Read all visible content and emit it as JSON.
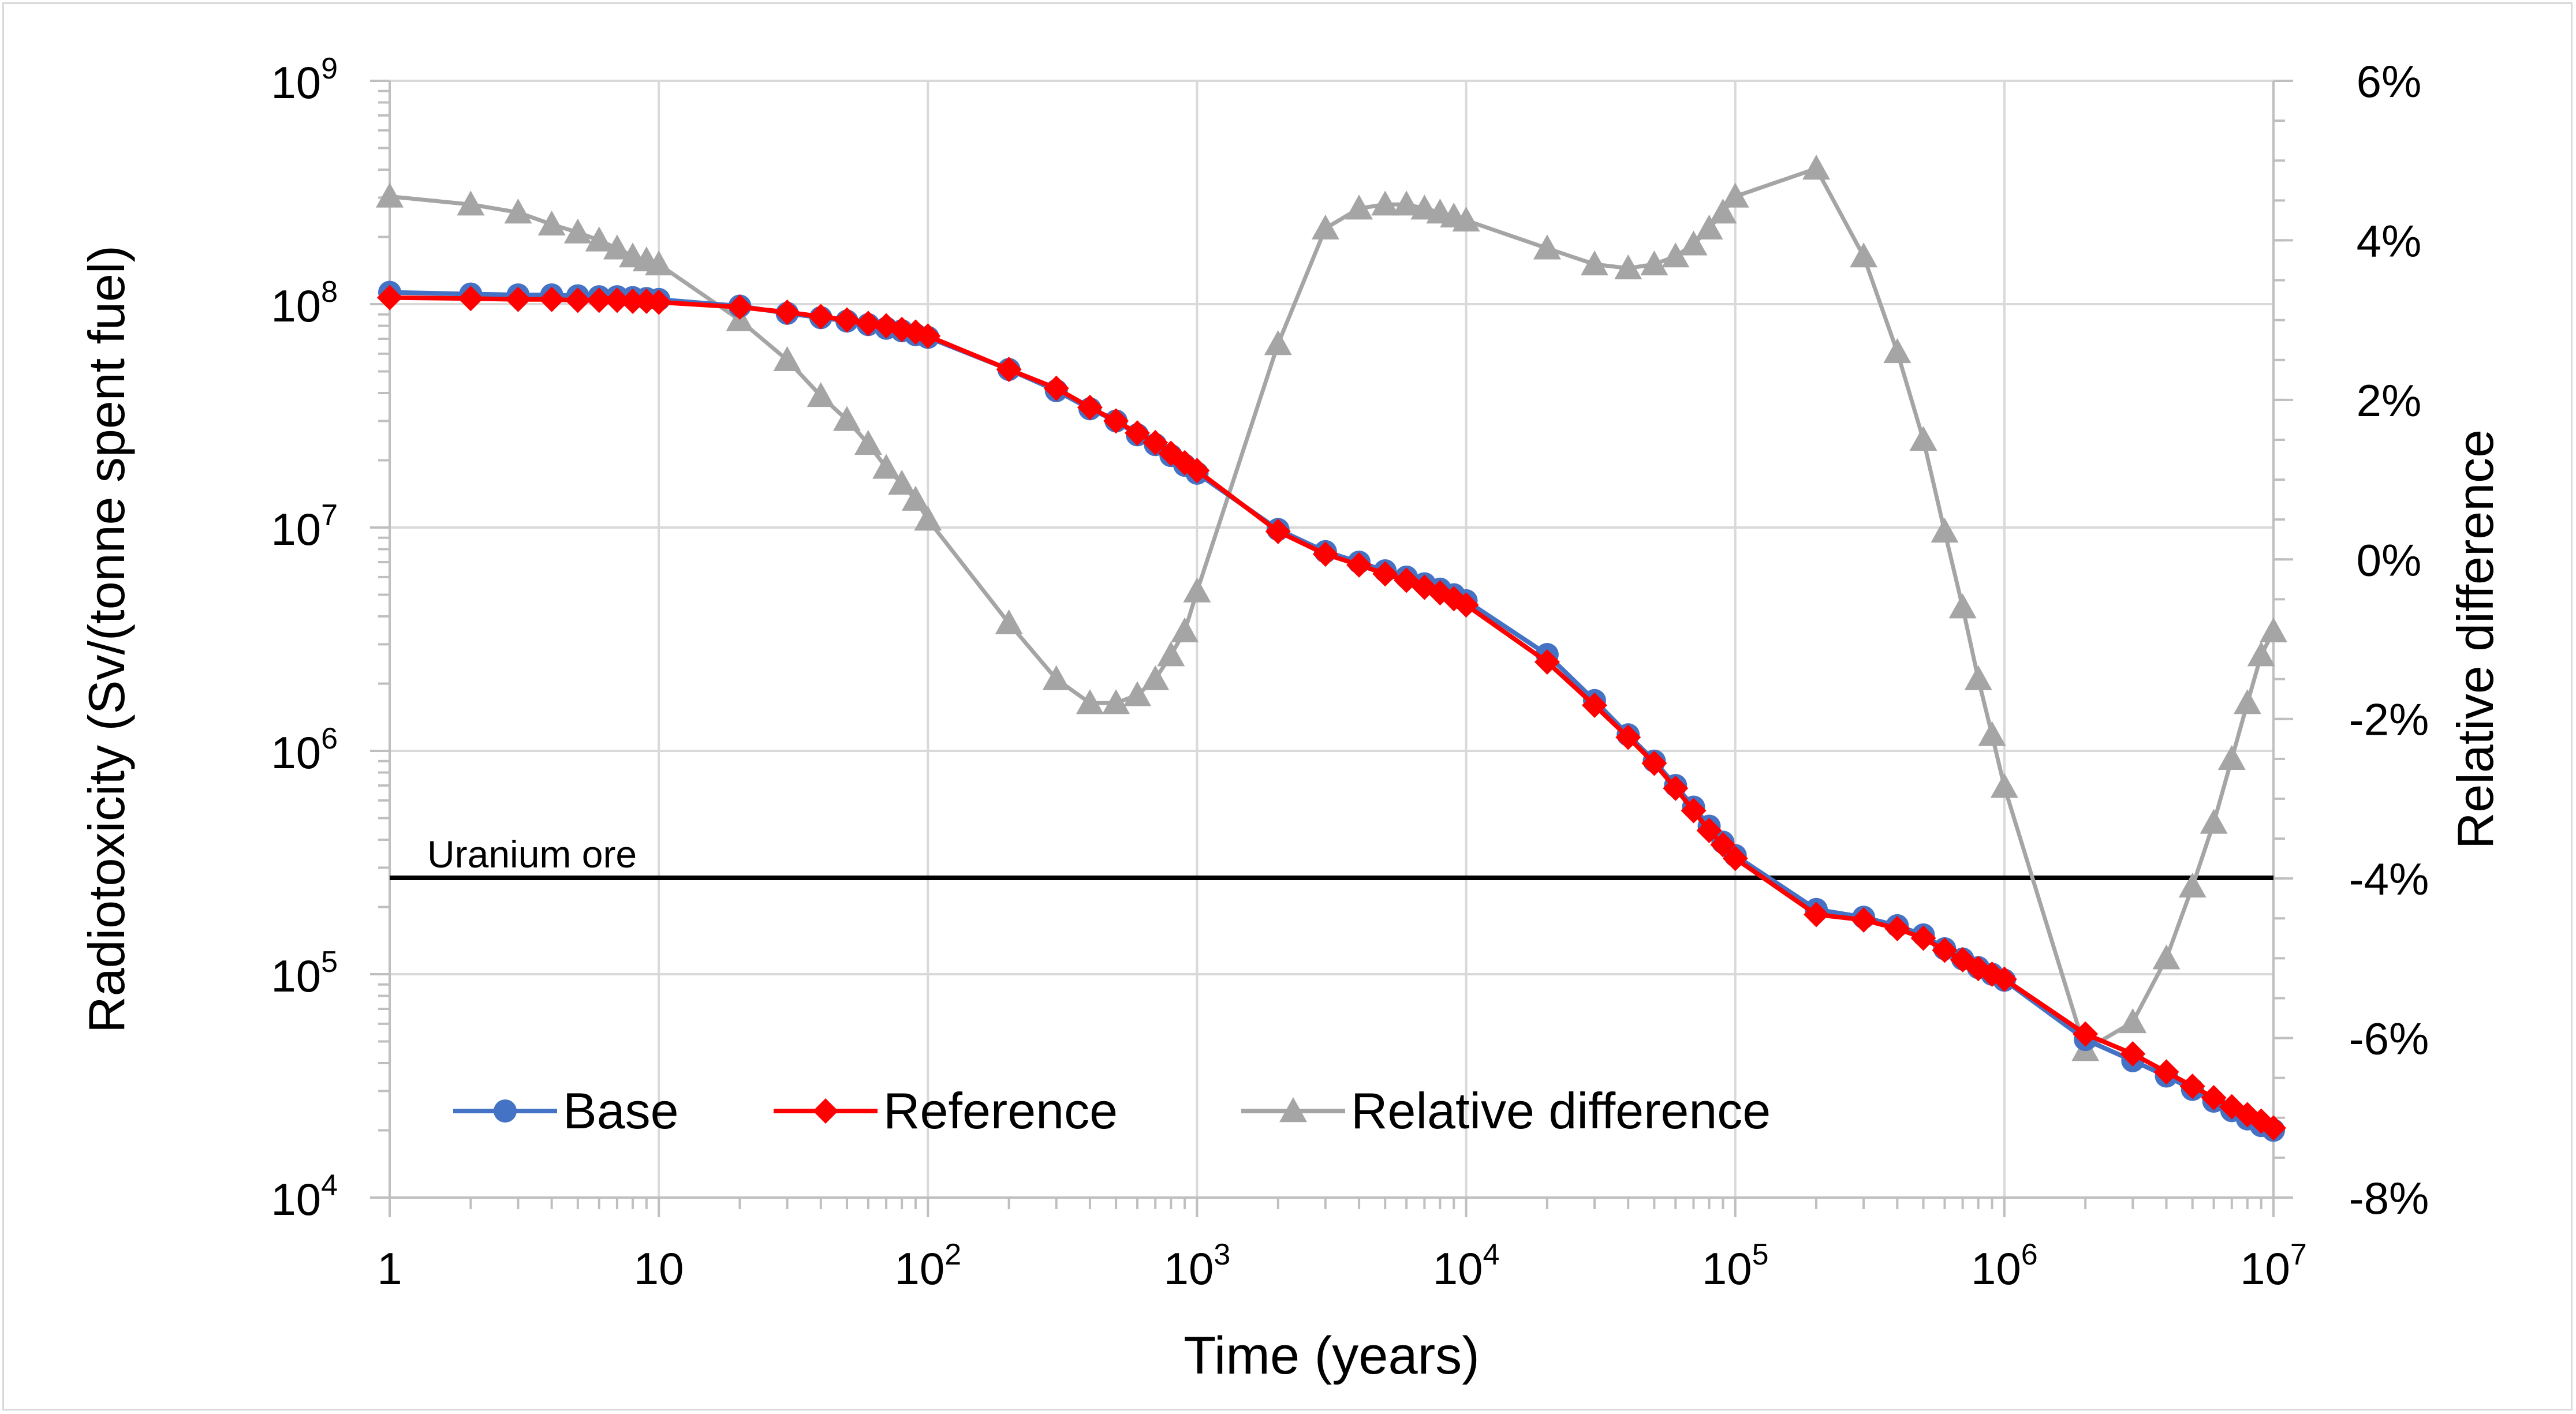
{
  "chart_data": {
    "type": "line",
    "title": "",
    "xlabel": "Time (years)",
    "ylabel": "Radiotoxicity (Sv/(tonne spent fuel)",
    "y2label": "Relative difference",
    "xscale": "log",
    "yscale": "log",
    "xlim": [
      1,
      10000000
    ],
    "ylim": [
      10000,
      1000000000
    ],
    "y2lim": [
      -8,
      6
    ],
    "grid": true,
    "legend_position": "bottom-left",
    "x_ticks": [
      {
        "value": 1,
        "base": "1",
        "exp": ""
      },
      {
        "value": 10,
        "base": "10",
        "exp": ""
      },
      {
        "value": 100,
        "base": "10",
        "exp": "2"
      },
      {
        "value": 1000,
        "base": "10",
        "exp": "3"
      },
      {
        "value": 10000,
        "base": "10",
        "exp": "4"
      },
      {
        "value": 100000,
        "base": "10",
        "exp": "5"
      },
      {
        "value": 1000000,
        "base": "10",
        "exp": "6"
      },
      {
        "value": 10000000,
        "base": "10",
        "exp": "7"
      }
    ],
    "y_ticks": [
      {
        "value": 10000,
        "base": "10",
        "exp": "4"
      },
      {
        "value": 100000,
        "base": "10",
        "exp": "5"
      },
      {
        "value": 1000000,
        "base": "10",
        "exp": "6"
      },
      {
        "value": 10000000,
        "base": "10",
        "exp": "7"
      },
      {
        "value": 100000000,
        "base": "10",
        "exp": "8"
      },
      {
        "value": 1000000000,
        "base": "10",
        "exp": "9"
      }
    ],
    "y2_ticks": [
      {
        "value": 6,
        "label": "6%"
      },
      {
        "value": 4,
        "label": "4%"
      },
      {
        "value": 2,
        "label": "2%"
      },
      {
        "value": 0,
        "label": "0%"
      },
      {
        "value": -2,
        "label": "-2%"
      },
      {
        "value": -4,
        "label": "-4%"
      },
      {
        "value": -6,
        "label": "-6%"
      },
      {
        "value": -8,
        "label": "-8%"
      }
    ],
    "annotation": {
      "text": "Uranium ore",
      "value": 270000
    },
    "series": [
      {
        "name": "Base",
        "axis": "left",
        "color": "#4472c4",
        "marker": "circle",
        "x": [
          1,
          2,
          3,
          4,
          5,
          6,
          7,
          8,
          9,
          10,
          20,
          30,
          40,
          50,
          60,
          70,
          80,
          90,
          100,
          200,
          300,
          400,
          500,
          600,
          700,
          800,
          900,
          1000,
          2000,
          3000,
          4000,
          5000,
          6000,
          7000,
          8000,
          9000,
          10000,
          20000,
          30000,
          40000,
          50000,
          60000,
          70000,
          80000,
          90000,
          100000,
          200000,
          300000,
          400000,
          500000,
          600000,
          700000,
          800000,
          900000,
          1000000,
          2000000,
          3000000,
          4000000,
          5000000,
          6000000,
          7000000,
          8000000,
          9000000,
          10000000
        ],
        "y": [
          113000000,
          111000000,
          110000000,
          110000000,
          109000000,
          108000000,
          108000000,
          107000000,
          106000000,
          105000000,
          98000000,
          91000000,
          87000000,
          84000000,
          81000000,
          78000000,
          76000000,
          73000000,
          71000000,
          51000000,
          41000000,
          34000000,
          30000000,
          26000000,
          23500000,
          21000000,
          19000000,
          17500000,
          9800000,
          7800000,
          7000000,
          6400000,
          6000000,
          5600000,
          5300000,
          5000000,
          4700000,
          2700000,
          1680000,
          1180000,
          900000,
          700000,
          560000,
          460000,
          390000,
          340000,
          195000,
          180000,
          165000,
          150000,
          130000,
          117000,
          107000,
          100000,
          94000,
          51000,
          41000,
          35000,
          30500,
          27000,
          24500,
          22500,
          21000,
          20000
        ]
      },
      {
        "name": "Reference",
        "axis": "left",
        "color": "#ff0000",
        "marker": "diamond",
        "x": [
          1,
          2,
          3,
          4,
          5,
          6,
          7,
          8,
          9,
          10,
          20,
          30,
          40,
          50,
          60,
          70,
          80,
          90,
          100,
          200,
          300,
          400,
          500,
          600,
          700,
          800,
          900,
          1000,
          2000,
          3000,
          4000,
          5000,
          6000,
          7000,
          8000,
          9000,
          10000,
          20000,
          30000,
          40000,
          50000,
          60000,
          70000,
          80000,
          90000,
          100000,
          200000,
          300000,
          400000,
          500000,
          600000,
          700000,
          800000,
          900000,
          1000000,
          2000000,
          3000000,
          4000000,
          5000000,
          6000000,
          7000000,
          8000000,
          9000000,
          10000000
        ],
        "y": [
          107000000,
          106000000,
          105000000,
          105000000,
          104000000,
          104000000,
          104000000,
          103000000,
          103000000,
          102000000,
          97000000,
          92000000,
          88000000,
          85000000,
          82000000,
          80000000,
          77000000,
          75000000,
          72000000,
          51000000,
          42000000,
          34500000,
          30000000,
          26500000,
          24000000,
          21500000,
          19500000,
          18000000,
          9600000,
          7600000,
          6800000,
          6200000,
          5800000,
          5400000,
          5100000,
          4800000,
          4500000,
          2500000,
          1600000,
          1150000,
          880000,
          680000,
          540000,
          440000,
          380000,
          330000,
          185000,
          175000,
          160000,
          145000,
          128000,
          116000,
          106000,
          100000,
          95000,
          54000,
          44000,
          36500,
          31500,
          28000,
          25500,
          23500,
          22000,
          20500
        ]
      },
      {
        "name": "Relative difference",
        "axis": "right",
        "color": "#a5a5a5",
        "marker": "triangle",
        "x": [
          1,
          2,
          3,
          4,
          5,
          6,
          7,
          8,
          9,
          10,
          20,
          30,
          40,
          50,
          60,
          70,
          80,
          90,
          100,
          200,
          300,
          400,
          500,
          600,
          700,
          800,
          900,
          1000,
          2000,
          3000,
          4000,
          5000,
          6000,
          7000,
          8000,
          9000,
          10000,
          20000,
          30000,
          40000,
          50000,
          60000,
          70000,
          80000,
          90000,
          100000,
          200000,
          300000,
          400000,
          500000,
          600000,
          700000,
          800000,
          900000,
          1000000,
          2000000,
          3000000,
          4000000,
          5000000,
          6000000,
          7000000,
          8000000,
          9000000,
          10000000
        ],
        "y": [
          4.55,
          4.45,
          4.35,
          4.2,
          4.1,
          4.0,
          3.9,
          3.8,
          3.75,
          3.7,
          3.0,
          2.5,
          2.05,
          1.75,
          1.45,
          1.15,
          0.95,
          0.75,
          0.5,
          -0.8,
          -1.5,
          -1.8,
          -1.8,
          -1.7,
          -1.5,
          -1.2,
          -0.9,
          -0.4,
          2.7,
          4.15,
          4.4,
          4.45,
          4.45,
          4.4,
          4.35,
          4.3,
          4.25,
          3.9,
          3.7,
          3.65,
          3.7,
          3.8,
          3.95,
          4.15,
          4.35,
          4.55,
          4.9,
          3.8,
          2.6,
          1.5,
          0.35,
          -0.6,
          -1.5,
          -2.2,
          -2.85,
          -6.15,
          -5.8,
          -5.0,
          -4.1,
          -3.3,
          -2.5,
          -1.8,
          -1.2,
          -0.9
        ]
      }
    ]
  }
}
